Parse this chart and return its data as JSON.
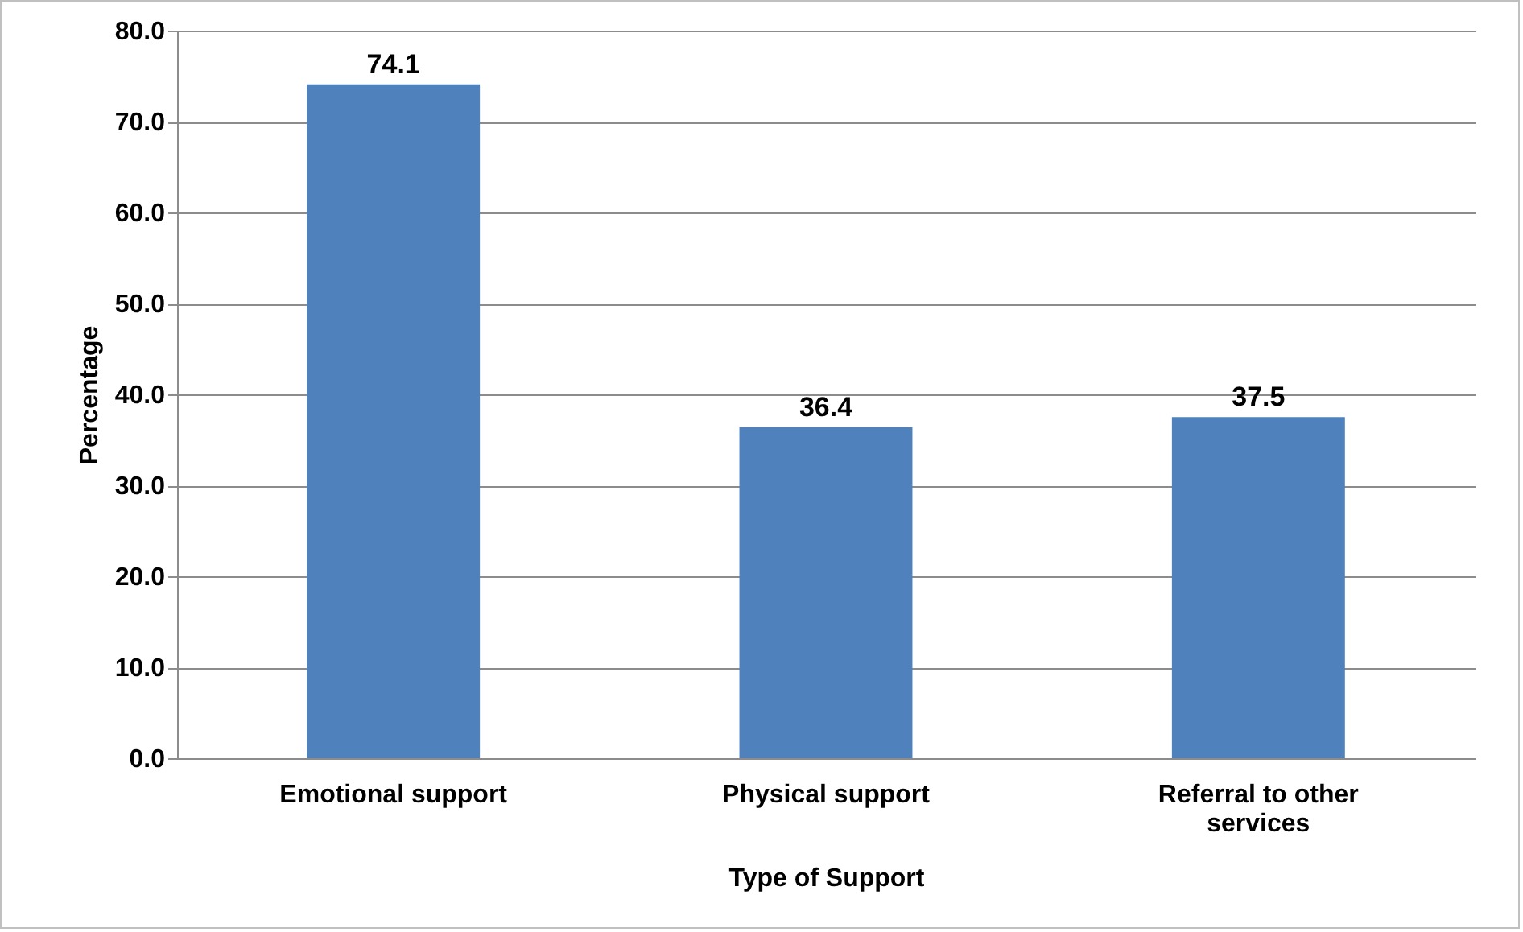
{
  "chart_data": {
    "type": "bar",
    "xlabel": "Type of Support",
    "ylabel": "Percentage",
    "categories": [
      "Emotional support",
      "Physical support",
      "Referral to other services"
    ],
    "values": [
      74.1,
      36.4,
      37.5
    ],
    "color": "#4f81bd",
    "ylim": [
      0,
      80
    ],
    "yticks": [
      {
        "value": 0,
        "label": "0.0"
      },
      {
        "value": 10,
        "label": "10.0"
      },
      {
        "value": 20,
        "label": "20.0"
      },
      {
        "value": 30,
        "label": "30.0"
      },
      {
        "value": 40,
        "label": "40.0"
      },
      {
        "value": 50,
        "label": "50.0"
      },
      {
        "value": 60,
        "label": "60.0"
      },
      {
        "value": 70,
        "label": "70.0"
      },
      {
        "value": 80,
        "label": "80.0"
      }
    ],
    "grid": "y",
    "data_labels": true
  }
}
